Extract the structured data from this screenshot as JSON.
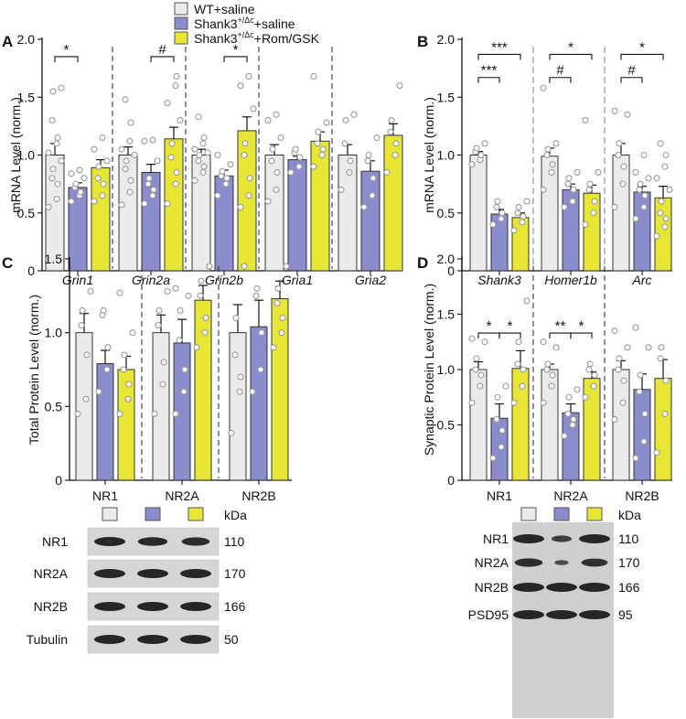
{
  "colors": {
    "wt": "#ebebeb",
    "shank": "#8a8ccc",
    "rom": "#e8e634"
  },
  "legend": {
    "items": [
      {
        "group": "wt",
        "base": "WT+saline",
        "sup": "",
        "rest": ""
      },
      {
        "group": "shank",
        "base": "Shank3",
        "sup": "+/Δc",
        "rest": "+saline"
      },
      {
        "group": "rom",
        "base": "Shank3",
        "sup": "+/Δc",
        "rest": "+Rom/GSK"
      }
    ]
  },
  "chart_data": [
    {
      "panel": "A",
      "type": "bar",
      "ylabel": "mRNA Level (norm.)",
      "ylim": [
        0,
        2.0
      ],
      "yticks": [
        "0",
        "0.5",
        "1.0",
        "1.5",
        "2.0"
      ],
      "categories": [
        "Grin1",
        "Grin2a",
        "Grin2b",
        "Gria1",
        "Gria2"
      ],
      "series": [
        {
          "name": "WT+saline",
          "group": "wt",
          "values": [
            1.0,
            1.0,
            1.0,
            1.0,
            1.0
          ],
          "sem": [
            0.1,
            0.07,
            0.05,
            0.09,
            0.09
          ],
          "points": [
            [
              0.55,
              0.62,
              0.75,
              0.8,
              0.88,
              0.95,
              1.02,
              1.1,
              1.15,
              1.3,
              1.55,
              1.58
            ],
            [
              0.57,
              0.68,
              0.78,
              0.88,
              0.95,
              1.0,
              1.05,
              1.12,
              1.28,
              1.48
            ],
            [
              0.78,
              0.85,
              0.9,
              0.95,
              1.0,
              1.02,
              1.05,
              1.1,
              1.15,
              1.33
            ],
            [
              0.6,
              0.7,
              0.85,
              0.95,
              1.05,
              1.15,
              1.3,
              1.35
            ],
            [
              0.7,
              0.85,
              0.95,
              1.1,
              1.3,
              1.35
            ]
          ]
        },
        {
          "name": "Shank3+saline",
          "group": "shank",
          "values": [
            0.72,
            0.85,
            0.82,
            0.96,
            0.86
          ],
          "sem": [
            0.04,
            0.07,
            0.05,
            0.03,
            0.09
          ],
          "points": [
            [
              0.6,
              0.65,
              0.68,
              0.72,
              0.75,
              0.8,
              0.84,
              0.87
            ],
            [
              0.58,
              0.65,
              0.7,
              0.75,
              0.8,
              0.95,
              1.12,
              1.13
            ],
            [
              0.65,
              0.75,
              0.8,
              0.82,
              0.86,
              0.92,
              1.0
            ],
            [
              0.85,
              0.9,
              0.98,
              1.02,
              1.05
            ],
            [
              0.55,
              0.65,
              0.8,
              0.95,
              1.0,
              1.15
            ]
          ]
        },
        {
          "name": "Shank3+Rom/GSK",
          "group": "rom",
          "values": [
            0.89,
            1.14,
            1.21,
            1.12,
            1.17
          ],
          "sem": [
            0.07,
            0.1,
            0.12,
            0.08,
            0.1
          ],
          "points": [
            [
              0.6,
              0.65,
              0.75,
              0.8,
              0.9,
              0.95,
              1.05,
              1.15
            ],
            [
              0.58,
              0.75,
              0.85,
              0.98,
              1.1,
              1.3,
              1.45,
              1.6,
              1.68
            ],
            [
              0.55,
              0.65,
              0.8,
              1.0,
              1.1,
              1.4,
              1.6,
              1.68
            ],
            [
              0.9,
              1.0,
              1.05,
              1.1,
              1.2,
              1.28,
              1.68
            ],
            [
              0.85,
              1.0,
              1.1,
              1.2,
              1.3,
              1.6
            ]
          ]
        }
      ],
      "significance": [
        {
          "cat": 0,
          "from": 0,
          "to": 1,
          "level": 1.85,
          "label": "*"
        },
        {
          "cat": 1,
          "from": 1,
          "to": 2,
          "level": 1.85,
          "label": "#"
        },
        {
          "cat": 2,
          "from": 1,
          "to": 2,
          "level": 1.85,
          "label": "*"
        }
      ]
    },
    {
      "panel": "B",
      "type": "bar",
      "ylabel": "mRNA Level (norm.)",
      "ylim": [
        0,
        2.0
      ],
      "yticks": [
        "0",
        "0.5",
        "1.0",
        "1.5",
        "2.0"
      ],
      "categories": [
        "Shank3",
        "Homer1b",
        "Arc"
      ],
      "series": [
        {
          "name": "WT+saline",
          "group": "wt",
          "values": [
            1.0,
            0.99,
            1.0
          ],
          "sem": [
            0.03,
            0.07,
            0.1
          ],
          "points": [
            [
              0.92,
              0.96,
              1.0,
              1.03,
              1.06,
              1.1
            ],
            [
              0.7,
              0.85,
              0.92,
              1.0,
              1.05,
              1.1,
              1.58
            ],
            [
              0.55,
              0.75,
              0.9,
              1.0,
              1.1,
              1.35,
              1.38
            ]
          ]
        },
        {
          "name": "Shank3+saline",
          "group": "shank",
          "values": [
            0.49,
            0.7,
            0.68
          ],
          "sem": [
            0.04,
            0.05,
            0.05
          ],
          "points": [
            [
              0.4,
              0.45,
              0.5,
              0.55,
              0.6
            ],
            [
              0.55,
              0.6,
              0.7,
              0.75,
              0.8,
              0.85
            ],
            [
              0.45,
              0.55,
              0.65,
              0.7,
              0.75,
              0.8,
              0.85,
              1.0
            ]
          ]
        },
        {
          "name": "Shank3+Rom/GSK",
          "group": "rom",
          "values": [
            0.46,
            0.67,
            0.63
          ],
          "sem": [
            0.04,
            0.07,
            0.1
          ],
          "points": [
            [
              0.35,
              0.42,
              0.47,
              0.5,
              0.55,
              0.6
            ],
            [
              0.4,
              0.5,
              0.6,
              0.7,
              0.75,
              0.85,
              1.3
            ],
            [
              0.3,
              0.38,
              0.45,
              0.5,
              0.6,
              0.7,
              0.8,
              0.9,
              1.0,
              1.1
            ]
          ]
        }
      ],
      "significance": [
        {
          "cat": 0,
          "from": 0,
          "to": 1,
          "level": 1.67,
          "label": "***"
        },
        {
          "cat": 0,
          "from": 0,
          "to": 2,
          "level": 1.87,
          "label": "***"
        },
        {
          "cat": 1,
          "from": 0,
          "to": 1,
          "level": 1.67,
          "label": "#"
        },
        {
          "cat": 1,
          "from": 0,
          "to": 2,
          "level": 1.87,
          "label": "*"
        },
        {
          "cat": 2,
          "from": 0,
          "to": 1,
          "level": 1.67,
          "label": "#"
        },
        {
          "cat": 2,
          "from": 0,
          "to": 2,
          "level": 1.87,
          "label": "*"
        }
      ]
    },
    {
      "panel": "C",
      "type": "bar",
      "ylabel": "Total Protein Level (norm.)",
      "ylim": [
        0,
        1.5
      ],
      "yticks": [
        "0",
        "0.5",
        "1.0",
        "1.5"
      ],
      "categories": [
        "NR1",
        "NR2A",
        "NR2B"
      ],
      "series": [
        {
          "name": "WT+saline",
          "group": "wt",
          "values": [
            1.0,
            1.0,
            1.0
          ],
          "sem": [
            0.13,
            0.12,
            0.19
          ],
          "points": [
            [
              0.45,
              0.55,
              0.85,
              1.05,
              1.15,
              1.28
            ],
            [
              0.45,
              0.65,
              0.8,
              1.05,
              1.15,
              1.28
            ],
            [
              0.32,
              0.6,
              0.7,
              0.85,
              1.1,
              1.45
            ]
          ]
        },
        {
          "name": "Shank3+saline",
          "group": "shank",
          "values": [
            0.79,
            0.93,
            1.04
          ],
          "sem": [
            0.09,
            0.16,
            0.18
          ],
          "points": [
            [
              0.6,
              0.75,
              0.9,
              1.12,
              1.15
            ],
            [
              0.45,
              0.6,
              0.75,
              0.95,
              1.15,
              1.25,
              1.3
            ],
            [
              0.6,
              0.75,
              1.0,
              1.25,
              1.3
            ]
          ]
        },
        {
          "name": "Shank3+Rom/GSK",
          "group": "rom",
          "values": [
            0.75,
            1.22,
            1.23
          ],
          "sem": [
            0.09,
            0.1,
            0.12
          ],
          "points": [
            [
              0.45,
              0.55,
              0.65,
              0.75,
              0.85,
              1.0,
              1.27
            ],
            [
              0.9,
              1.0,
              1.1,
              1.25,
              1.35,
              1.45
            ],
            [
              0.9,
              1.0,
              1.1,
              1.2,
              1.3,
              1.45
            ]
          ]
        }
      ],
      "significance": []
    },
    {
      "panel": "D",
      "type": "bar",
      "ylabel": "Synaptic Protein Level (norm.)",
      "ylim": [
        0,
        2.0
      ],
      "yticks": [
        "0",
        "0.5",
        "1.0",
        "1.5",
        "2.0"
      ],
      "categories": [
        "NR1",
        "NR2A",
        "NR2B"
      ],
      "series": [
        {
          "name": "WT+saline",
          "group": "wt",
          "values": [
            1.0,
            1.0,
            1.0
          ],
          "sem": [
            0.07,
            0.05,
            0.08
          ],
          "points": [
            [
              0.7,
              0.85,
              0.95,
              1.0,
              1.1,
              1.25,
              1.28
            ],
            [
              0.7,
              0.85,
              0.95,
              1.0,
              1.05,
              1.2,
              1.25
            ],
            [
              0.55,
              0.7,
              0.9,
              1.0,
              1.1,
              1.2,
              1.35
            ]
          ]
        },
        {
          "name": "Shank3+saline",
          "group": "shank",
          "values": [
            0.56,
            0.61,
            0.82
          ],
          "sem": [
            0.13,
            0.08,
            0.14
          ],
          "points": [
            [
              0.2,
              0.3,
              0.45,
              0.55,
              0.75,
              0.85
            ],
            [
              0.4,
              0.5,
              0.55,
              0.6,
              0.75,
              0.82
            ],
            [
              0.2,
              0.35,
              0.6,
              0.8,
              0.95,
              1.2,
              1.38
            ]
          ]
        },
        {
          "name": "Shank3+Rom/GSK",
          "group": "rom",
          "values": [
            1.01,
            0.92,
            0.92
          ],
          "sem": [
            0.16,
            0.06,
            0.17
          ],
          "points": [
            [
              0.7,
              0.85,
              1.0,
              1.05,
              1.25,
              1.62
            ],
            [
              0.75,
              0.85,
              0.95,
              1.0,
              1.05
            ],
            [
              0.25,
              0.6,
              0.9,
              1.1,
              1.2
            ]
          ]
        }
      ],
      "significance": [
        {
          "cat": 0,
          "from": 0,
          "to": 1,
          "level": 1.33,
          "label": "*"
        },
        {
          "cat": 0,
          "from": 1,
          "to": 2,
          "level": 1.33,
          "label": "*"
        },
        {
          "cat": 1,
          "from": 0,
          "to": 1,
          "level": 1.33,
          "label": "**"
        },
        {
          "cat": 1,
          "from": 1,
          "to": 2,
          "level": 1.33,
          "label": "*"
        }
      ]
    }
  ],
  "blots": [
    {
      "panel": "C",
      "kda_label": "kDa",
      "rows": [
        {
          "name": "NR1",
          "kda": "110"
        },
        {
          "name": "NR2A",
          "kda": "170"
        },
        {
          "name": "NR2B",
          "kda": "166"
        },
        {
          "name": "Tubulin",
          "kda": "50"
        }
      ]
    },
    {
      "panel": "D",
      "kda_label": "kDa",
      "rows": [
        {
          "name": "NR1",
          "kda": "110"
        },
        {
          "name": "NR2A",
          "kda": "170"
        },
        {
          "name": "NR2B",
          "kda": "166"
        },
        {
          "name": "PSD95",
          "kda": "95"
        }
      ]
    }
  ]
}
